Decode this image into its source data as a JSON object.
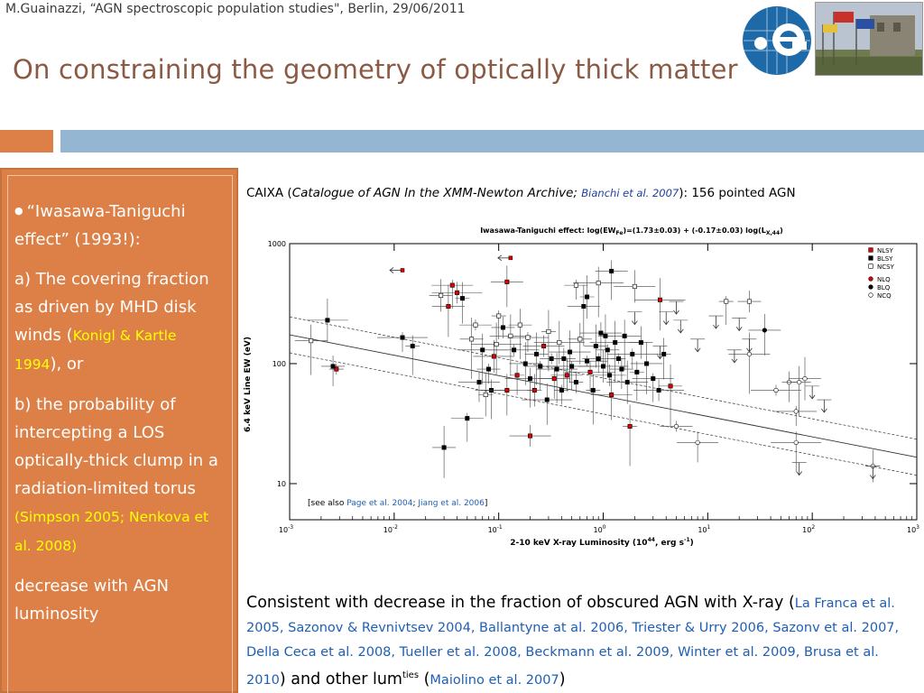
{
  "header": {
    "line": "M.Guainazzi, “AGN spectroscopic population studies\", Berlin, 29/06/2011",
    "title": "On constraining the geometry of optically thick matter"
  },
  "sidebar": {
    "p1": "“Iwasawa-Taniguchi effect” (1993!):",
    "p2_text": "a) The covering fraction as driven by MHD disk winds (",
    "p2_ref": "Konigl & Kartle 1994",
    "p2_tail": "), or",
    "p3_text": "b) the probability of intercepting a LOS optically-thick clump in a radiation-limited torus ",
    "p3_ref": "(Simpson 2005; Nenkova et al. 2008)",
    "p4": "decrease with AGN luminosity"
  },
  "caixa": {
    "prefix": "CAIXA (",
    "catalogue": "Catalogue of AGN In the XMM-Newton Archive",
    "sep": ";",
    "ref": "Bianchi et al. 2007",
    "suffix": "): 156 pointed AGN"
  },
  "bottom": {
    "text1": "Consistent with decrease in the fraction of obscured AGN with X-ray (",
    "refs": "La Franca et al. 2005, Sazonov & Revnivtsev 2004, Ballantyne at al. 2006, Triester & Urry 2006, Sazonv et al. 2007, Della Ceca et al. 2008, Tueller et al. 2008, Beckmann et al. 2009, Winter et al. 2009, Brusa et al. 2010",
    "text2": ") and other lum",
    "sup": "ties",
    "text3": " (",
    "ref2": "Maiolino et al. 2007",
    "text4": ")"
  },
  "chart_data": {
    "type": "scatter",
    "title": "Iwasawa-Taniguchi effect: log(EW",
    "title_sub": "Fe",
    "title_eq": ")=(1.73±0.03) + (-0.17±0.03) log(L",
    "title_sub2": "X,44",
    "title_end": ")",
    "xlabel": "2-10 keV X-ray Luminosity (10",
    "xlabel_sup": "44",
    "xlabel_end": ", erg s",
    "xlabel_sup2": "-1",
    "xlabel_close": ")",
    "ylabel": "6.4 keV Line EW (eV)",
    "x_scale": "log",
    "y_scale": "log",
    "xlim": [
      0.001,
      1000
    ],
    "ylim": [
      5,
      1000
    ],
    "x_ticks": [
      {
        "base": "10",
        "exp": "-3",
        "v": 0.001
      },
      {
        "base": "10",
        "exp": "-2",
        "v": 0.01
      },
      {
        "base": "10",
        "exp": "-1",
        "v": 0.1
      },
      {
        "base": "10",
        "exp": "0",
        "v": 1
      },
      {
        "base": "10",
        "exp": "1",
        "v": 10
      },
      {
        "base": "10",
        "exp": "2",
        "v": 100
      },
      {
        "base": "10",
        "exp": "3",
        "v": 1000
      }
    ],
    "y_ticks": [
      {
        "label": "1000",
        "v": 1000
      },
      {
        "label": "100",
        "v": 100
      },
      {
        "label": "10",
        "v": 10
      }
    ],
    "fit": {
      "intercept": 1.73,
      "slope": -0.17,
      "band": 0.15
    },
    "legend": [
      {
        "name": "NLSY",
        "color": "#e00000",
        "marker": "square-filled"
      },
      {
        "name": "BLSY",
        "color": "#000000",
        "marker": "square-filled"
      },
      {
        "name": "NCSY",
        "color": "#000000",
        "marker": "square-open"
      },
      {
        "name": "NLQ",
        "color": "#e00000",
        "marker": "circle-filled"
      },
      {
        "name": "BLQ",
        "color": "#000000",
        "marker": "circle-filled"
      },
      {
        "name": "NCQ",
        "color": "#000000",
        "marker": "circle-open"
      }
    ],
    "annotation_prefix": "[see also ",
    "annotation_ref1": "Page et al. 2004",
    "annotation_sep": "; ",
    "annotation_ref2": "Jiang et al. 2006",
    "annotation_suffix": "]",
    "points": [
      {
        "x": 0.0028,
        "y": 90,
        "c": "nlsy"
      },
      {
        "x": 0.0026,
        "y": 95,
        "c": "blsy"
      },
      {
        "x": 0.0016,
        "y": 155,
        "c": "ncsy"
      },
      {
        "x": 0.0023,
        "y": 230,
        "c": "blsy"
      },
      {
        "x": 0.012,
        "y": 165,
        "c": "blsy"
      },
      {
        "x": 0.015,
        "y": 140,
        "c": "blsy"
      },
      {
        "x": 0.028,
        "y": 370,
        "c": "ncsy"
      },
      {
        "x": 0.033,
        "y": 300,
        "c": "nlsy"
      },
      {
        "x": 0.036,
        "y": 450,
        "c": "nlsy"
      },
      {
        "x": 0.04,
        "y": 390,
        "c": "nlsy"
      },
      {
        "x": 0.045,
        "y": 350,
        "c": "blsy"
      },
      {
        "x": 0.055,
        "y": 160,
        "c": "ncsy"
      },
      {
        "x": 0.06,
        "y": 210,
        "c": "ncsy"
      },
      {
        "x": 0.065,
        "y": 70,
        "c": "blsy"
      },
      {
        "x": 0.07,
        "y": 130,
        "c": "blsy"
      },
      {
        "x": 0.075,
        "y": 55,
        "c": "ncsy"
      },
      {
        "x": 0.08,
        "y": 90,
        "c": "blsy"
      },
      {
        "x": 0.085,
        "y": 60,
        "c": "blsy"
      },
      {
        "x": 0.09,
        "y": 115,
        "c": "nlsy"
      },
      {
        "x": 0.095,
        "y": 145,
        "c": "ncsy"
      },
      {
        "x": 0.1,
        "y": 250,
        "c": "ncsy"
      },
      {
        "x": 0.11,
        "y": 200,
        "c": "blsy"
      },
      {
        "x": 0.12,
        "y": 480,
        "c": "nlsy"
      },
      {
        "x": 0.13,
        "y": 170,
        "c": "ncsy"
      },
      {
        "x": 0.14,
        "y": 130,
        "c": "blsy"
      },
      {
        "x": 0.15,
        "y": 80,
        "c": "nlsy"
      },
      {
        "x": 0.16,
        "y": 210,
        "c": "ncsy"
      },
      {
        "x": 0.18,
        "y": 100,
        "c": "blsy"
      },
      {
        "x": 0.19,
        "y": 165,
        "c": "ncsy"
      },
      {
        "x": 0.2,
        "y": 75,
        "c": "blsy"
      },
      {
        "x": 0.22,
        "y": 60,
        "c": "nlsy"
      },
      {
        "x": 0.23,
        "y": 120,
        "c": "blsy"
      },
      {
        "x": 0.25,
        "y": 95,
        "c": "blsy"
      },
      {
        "x": 0.27,
        "y": 140,
        "c": "nlsy"
      },
      {
        "x": 0.29,
        "y": 50,
        "c": "blsy"
      },
      {
        "x": 0.3,
        "y": 185,
        "c": "ncsy"
      },
      {
        "x": 0.32,
        "y": 110,
        "c": "blsy"
      },
      {
        "x": 0.34,
        "y": 75,
        "c": "nlsy"
      },
      {
        "x": 0.36,
        "y": 90,
        "c": "blsy"
      },
      {
        "x": 0.38,
        "y": 150,
        "c": "ncsy"
      },
      {
        "x": 0.4,
        "y": 60,
        "c": "blsy"
      },
      {
        "x": 0.42,
        "y": 110,
        "c": "blsy"
      },
      {
        "x": 0.45,
        "y": 80,
        "c": "nlsy"
      },
      {
        "x": 0.48,
        "y": 125,
        "c": "blsy"
      },
      {
        "x": 0.5,
        "y": 95,
        "c": "blsy"
      },
      {
        "x": 0.55,
        "y": 70,
        "c": "blsy"
      },
      {
        "x": 0.6,
        "y": 160,
        "c": "ncsy"
      },
      {
        "x": 0.65,
        "y": 300,
        "c": "blsy"
      },
      {
        "x": 0.7,
        "y": 105,
        "c": "blsy"
      },
      {
        "x": 0.75,
        "y": 85,
        "c": "nlsy"
      },
      {
        "x": 0.8,
        "y": 60,
        "c": "blsy"
      },
      {
        "x": 0.85,
        "y": 140,
        "c": "blsy"
      },
      {
        "x": 0.9,
        "y": 110,
        "c": "blsy"
      },
      {
        "x": 0.95,
        "y": 180,
        "c": "blsy"
      },
      {
        "x": 1.0,
        "y": 95,
        "c": "blsy"
      },
      {
        "x": 1.05,
        "y": 170,
        "c": "blsy"
      },
      {
        "x": 1.1,
        "y": 130,
        "c": "blsy"
      },
      {
        "x": 1.15,
        "y": 80,
        "c": "blsy"
      },
      {
        "x": 1.2,
        "y": 55,
        "c": "nlsy"
      },
      {
        "x": 1.3,
        "y": 150,
        "c": "blsy"
      },
      {
        "x": 1.4,
        "y": 110,
        "c": "blsy"
      },
      {
        "x": 1.5,
        "y": 90,
        "c": "blsy"
      },
      {
        "x": 1.6,
        "y": 170,
        "c": "blsy"
      },
      {
        "x": 1.7,
        "y": 70,
        "c": "blsy"
      },
      {
        "x": 1.9,
        "y": 120,
        "c": "blsy"
      },
      {
        "x": 2.1,
        "y": 85,
        "c": "blsy"
      },
      {
        "x": 2.3,
        "y": 150,
        "c": "blsy"
      },
      {
        "x": 2.6,
        "y": 100,
        "c": "blsy"
      },
      {
        "x": 3.0,
        "y": 75,
        "c": "blsy"
      },
      {
        "x": 3.4,
        "y": 60,
        "c": "blsy"
      },
      {
        "x": 3.8,
        "y": 120,
        "c": "blsy"
      },
      {
        "x": 4.4,
        "y": 65,
        "c": "nlsy"
      },
      {
        "x": 5.0,
        "y": 30,
        "c": "ncq"
      },
      {
        "x": 8.0,
        "y": 22,
        "c": "ncq"
      },
      {
        "x": 0.9,
        "y": 470,
        "c": "ncsy"
      },
      {
        "x": 0.7,
        "y": 360,
        "c": "blsy"
      },
      {
        "x": 0.55,
        "y": 450,
        "c": "ncsy"
      },
      {
        "x": 1.2,
        "y": 590,
        "c": "blsy"
      },
      {
        "x": 2.0,
        "y": 440,
        "c": "ncsy"
      },
      {
        "x": 3.5,
        "y": 340,
        "c": "nlsy"
      },
      {
        "x": 15,
        "y": 330,
        "c": "ncsy"
      },
      {
        "x": 25,
        "y": 330,
        "c": "ncsy"
      },
      {
        "x": 35,
        "y": 190,
        "c": "blq"
      },
      {
        "x": 25,
        "y": 120,
        "c": "ncq"
      },
      {
        "x": 45,
        "y": 60,
        "c": "ncq"
      },
      {
        "x": 60,
        "y": 70,
        "c": "ncq"
      },
      {
        "x": 75,
        "y": 70,
        "c": "ncq"
      },
      {
        "x": 85,
        "y": 75,
        "c": "ncq"
      },
      {
        "x": 70,
        "y": 40,
        "c": "ncq"
      },
      {
        "x": 70,
        "y": 22,
        "c": "ncq"
      },
      {
        "x": 380,
        "y": 14,
        "c": "ncq"
      },
      {
        "x": 0.03,
        "y": 20,
        "c": "blsy"
      },
      {
        "x": 0.05,
        "y": 35,
        "c": "blsy"
      },
      {
        "x": 0.2,
        "y": 25,
        "c": "nlsy"
      },
      {
        "x": 0.12,
        "y": 60,
        "c": "nlsy"
      },
      {
        "x": 1.8,
        "y": 30,
        "c": "nlsy"
      }
    ],
    "upper_limits": [
      {
        "x": 0.012,
        "y": 600,
        "dir": "left"
      },
      {
        "x": 0.13,
        "y": 760,
        "dir": "left"
      },
      {
        "x": 2.0,
        "y": 270,
        "dir": "down"
      },
      {
        "x": 4.0,
        "y": 270,
        "dir": "down"
      },
      {
        "x": 5.5,
        "y": 230,
        "dir": "down"
      },
      {
        "x": 8.0,
        "y": 160,
        "dir": "down"
      },
      {
        "x": 12,
        "y": 250,
        "dir": "down"
      },
      {
        "x": 20,
        "y": 240,
        "dir": "down"
      },
      {
        "x": 18,
        "y": 130,
        "dir": "down"
      },
      {
        "x": 25,
        "y": 160,
        "dir": "down"
      },
      {
        "x": 100,
        "y": 65,
        "dir": "down"
      },
      {
        "x": 130,
        "y": 50,
        "dir": "down"
      },
      {
        "x": 75,
        "y": 15,
        "dir": "down"
      },
      {
        "x": 380,
        "y": 14,
        "dir": "down"
      },
      {
        "x": 3.5,
        "y": 140,
        "dir": "down"
      },
      {
        "x": 5.0,
        "y": 330,
        "dir": "down"
      }
    ]
  }
}
